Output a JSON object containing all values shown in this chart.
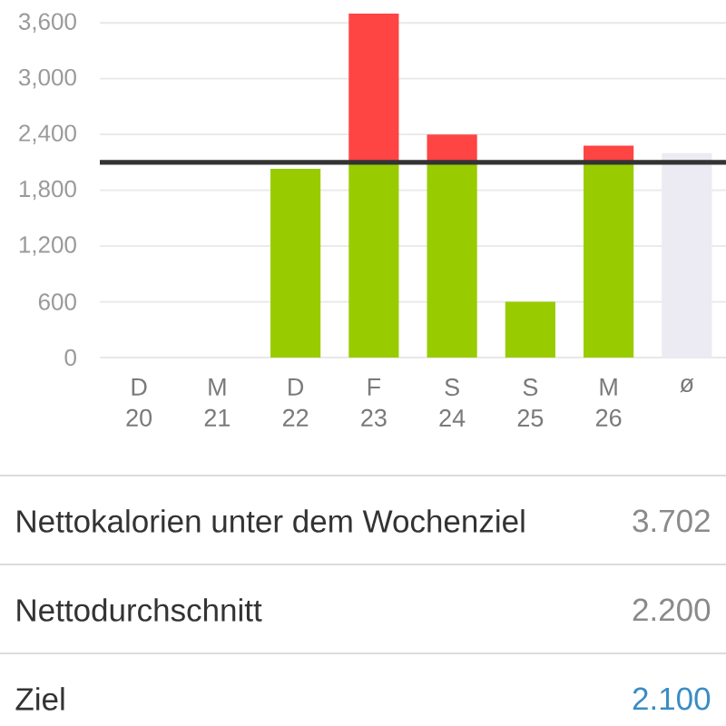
{
  "chart_data": {
    "type": "bar",
    "stacked": true,
    "categories": [
      "D 20",
      "M 21",
      "D 22",
      "F 23",
      "S 24",
      "S 25",
      "M 26",
      "ø"
    ],
    "series": [
      {
        "colors": [
          "#99cc00",
          "#99cc00",
          "#99cc00",
          "#99cc00",
          "#99cc00",
          "#99cc00",
          "#99cc00",
          "#ecebf3"
        ],
        "values": [
          null,
          null,
          2030,
          2100,
          2100,
          600,
          2100,
          2200
        ]
      },
      {
        "color": "#ff4444",
        "values": [
          null,
          null,
          null,
          1600,
          300,
          null,
          180,
          null
        ]
      }
    ],
    "ylim": [
      0,
      3700
    ],
    "yticks": [
      0,
      600,
      {
        "value": 1200,
        "label": "1,200"
      },
      {
        "value": 1800,
        "label": "1,800"
      },
      {
        "value": 2400,
        "label": "2,400"
      },
      {
        "value": 3000,
        "label": "3,000"
      },
      {
        "value": 3600,
        "label": "3,600"
      }
    ],
    "grid": "y",
    "ref_lines": [
      {
        "axis": "y",
        "value": 2100,
        "color": "#333333"
      }
    ],
    "annotations": [
      "Nettokalorien unter dem Wochenziel",
      "3.702",
      "Nettodurchschnitt",
      "2.200",
      "Ziel",
      "2.100"
    ]
  }
}
